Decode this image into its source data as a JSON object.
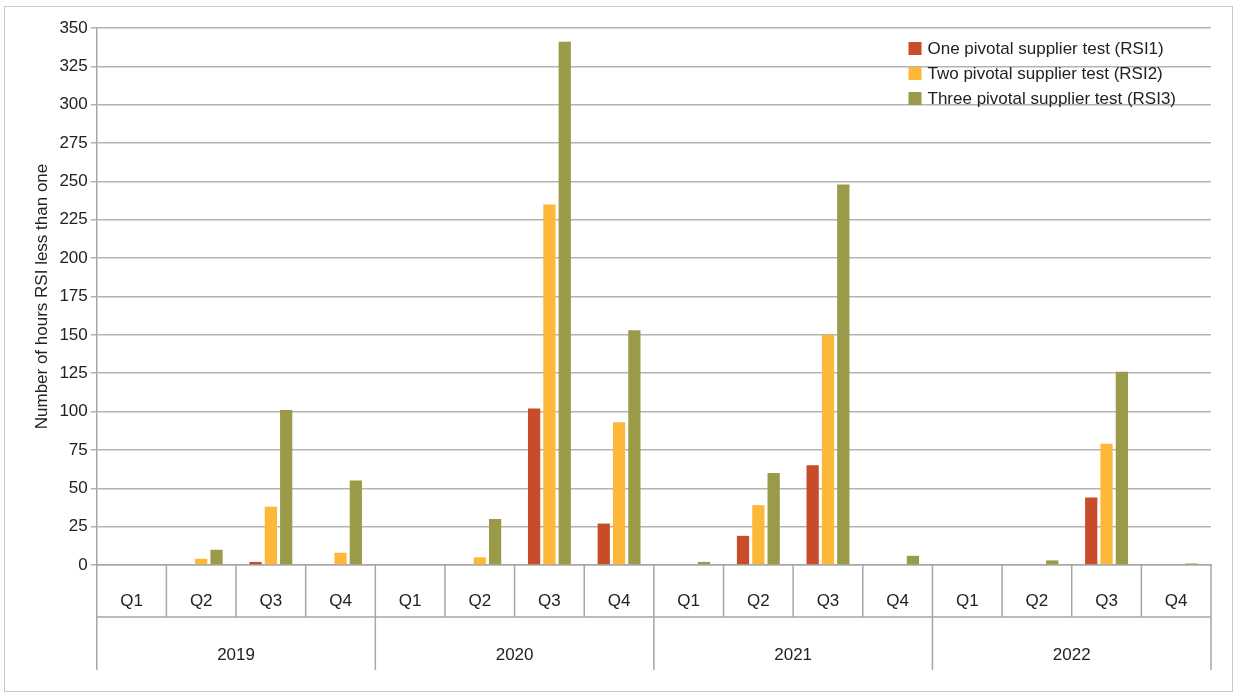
{
  "chart_data": {
    "type": "bar",
    "categories": [
      "Q1",
      "Q2",
      "Q3",
      "Q4",
      "Q1",
      "Q2",
      "Q3",
      "Q4",
      "Q1",
      "Q2",
      "Q3",
      "Q4",
      "Q1",
      "Q2",
      "Q3",
      "Q4"
    ],
    "series": [
      {
        "name": "One pivotal supplier test (RSI1)",
        "color": "#c84b2a",
        "values": [
          0,
          0,
          2,
          0,
          0,
          0,
          102,
          27,
          0,
          19,
          65,
          0,
          0,
          0,
          44,
          0
        ]
      },
      {
        "name": "Two pivotal supplier test (RSI2)",
        "color": "#fdb83a",
        "values": [
          0,
          4,
          38,
          8,
          0,
          5,
          235,
          93,
          0,
          39,
          150,
          0,
          0,
          0,
          79,
          0
        ]
      },
      {
        "name": "Three pivotal supplier test (RSI3)",
        "color": "#9a9a48",
        "values": [
          0,
          10,
          101,
          55,
          0,
          30,
          341,
          153,
          2,
          60,
          248,
          6,
          0,
          3,
          126,
          1
        ]
      }
    ],
    "ylabel": "Number of hours RSI less than one",
    "ylim": [
      0,
      350
    ],
    "yticks": [
      0,
      25,
      50,
      75,
      100,
      125,
      150,
      175,
      200,
      225,
      250,
      275,
      300,
      325,
      350
    ],
    "annotations": [
      "2019",
      "2020",
      "2021",
      "2022"
    ],
    "grid": "y",
    "legend": "top right"
  }
}
